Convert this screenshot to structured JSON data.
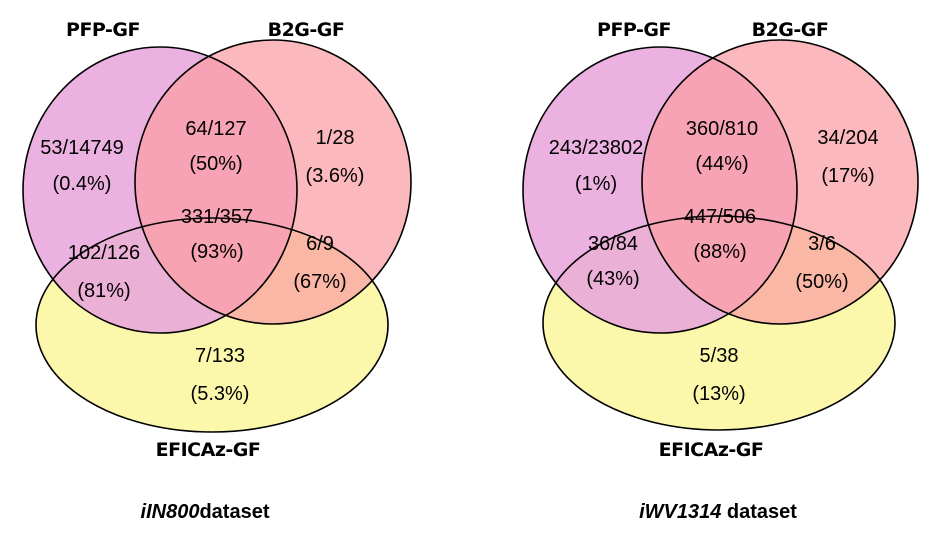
{
  "diagrams": [
    {
      "sets": {
        "pfp": "PFP-GF",
        "b2g": "B2G-GF",
        "eficaz": "EFICAz-GF"
      },
      "regions": {
        "pfp_only": {
          "count": "53/14749",
          "pct": "(0.4%)"
        },
        "pfp_b2g": {
          "count": "64/127",
          "pct": "(50%)"
        },
        "b2g_only": {
          "count": "1/28",
          "pct": "(3.6%)"
        },
        "all_three": {
          "count": "331/357",
          "pct": "(93%)"
        },
        "pfp_eficaz": {
          "count": "102/126",
          "pct": "(81%)"
        },
        "b2g_eficaz": {
          "count": "6/9",
          "pct": "(67%)"
        },
        "eficaz_only": {
          "count": "7/133",
          "pct": "(5.3%)"
        }
      },
      "caption": {
        "italic": "iIN800",
        "plain": "dataset"
      }
    },
    {
      "sets": {
        "pfp": "PFP-GF",
        "b2g": "B2G-GF",
        "eficaz": "EFICAz-GF"
      },
      "regions": {
        "pfp_only": {
          "count": "243/23802",
          "pct": "(1%)"
        },
        "pfp_b2g": {
          "count": "360/810",
          "pct": "(44%)"
        },
        "b2g_only": {
          "count": "34/204",
          "pct": "(17%)"
        },
        "all_three": {
          "count": "447/506",
          "pct": "(88%)"
        },
        "pfp_eficaz": {
          "count": "36/84",
          "pct": "(43%)"
        },
        "b2g_eficaz": {
          "count": "3/6",
          "pct": "(50%)"
        },
        "eficaz_only": {
          "count": "5/38",
          "pct": "(13%)"
        }
      },
      "caption": {
        "italic": "iWV1314",
        "plain": " dataset"
      }
    }
  ],
  "colors": {
    "pfp": "#e8a6dc",
    "b2g": "#fb9ea4",
    "eficaz": "#fbf6a2",
    "outline": "#000000"
  }
}
